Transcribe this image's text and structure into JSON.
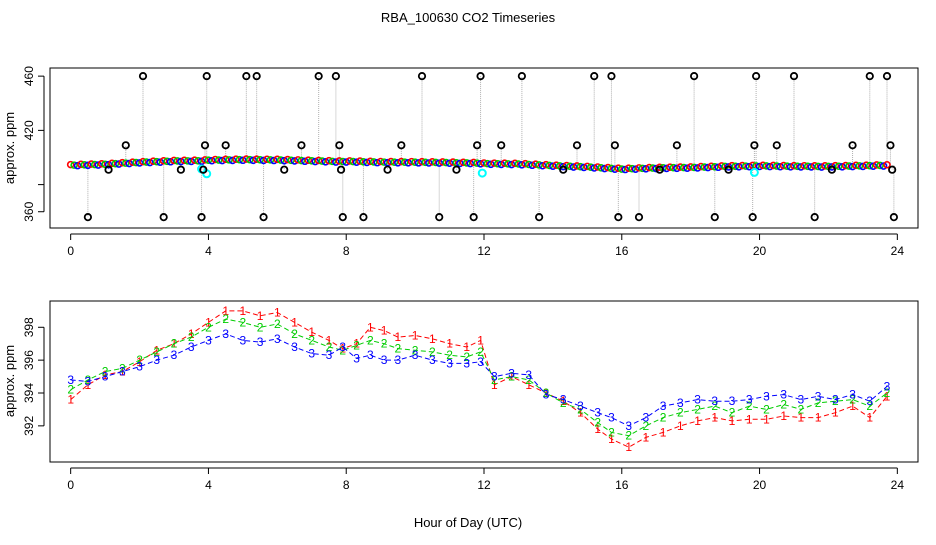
{
  "figure": {
    "title": "RBA_100630  CO2 Timeseries",
    "xlabel": "Hour of Day (UTC)"
  },
  "colors": {
    "series1": "#ff0000",
    "series2": "#00cd00",
    "series3": "#0000ff",
    "outlier": "#000000",
    "aux": "#00ffff",
    "line": "#b0b0b0"
  },
  "chart_data": [
    {
      "type": "scatter",
      "panel": "top",
      "ylabel": "approx. ppm",
      "xlim": [
        -0.6,
        24.6
      ],
      "ylim": [
        348,
        466
      ],
      "xticks": [
        0,
        4,
        8,
        12,
        16,
        20,
        24
      ],
      "yticks": [
        360,
        380,
        420,
        460
      ],
      "ytick_labels": [
        "360",
        "",
        "420",
        "460"
      ],
      "baseline": [
        [
          0,
          394.3
        ],
        [
          1,
          395
        ],
        [
          2,
          396.4
        ],
        [
          3,
          397.4
        ],
        [
          3.8,
          397.6
        ],
        [
          4,
          398
        ],
        [
          5,
          398.4
        ],
        [
          6,
          398.2
        ],
        [
          7.8,
          397
        ],
        [
          8,
          397.1
        ],
        [
          9,
          396.6
        ],
        [
          10,
          396.5
        ],
        [
          11,
          396.2
        ],
        [
          11.9,
          395.8
        ],
        [
          12,
          395.5
        ],
        [
          13,
          395.2
        ],
        [
          14,
          394
        ],
        [
          15,
          393
        ],
        [
          16,
          391.5
        ],
        [
          17,
          392.3
        ],
        [
          18,
          392.6
        ],
        [
          19,
          393.4
        ],
        [
          20,
          393.8
        ],
        [
          21,
          393.5
        ],
        [
          22,
          393.4
        ],
        [
          23.7,
          394.2
        ]
      ],
      "outliers": [
        [
          0.5,
          356
        ],
        [
          1.1,
          391
        ],
        [
          1.6,
          409
        ],
        [
          2.1,
          460
        ],
        [
          2.7,
          356
        ],
        [
          3.2,
          391
        ],
        [
          3.8,
          356
        ],
        [
          3.85,
          391
        ],
        [
          3.9,
          409
        ],
        [
          3.95,
          460
        ],
        [
          4.5,
          409
        ],
        [
          5.1,
          460
        ],
        [
          5.4,
          460
        ],
        [
          5.6,
          356
        ],
        [
          6.2,
          391
        ],
        [
          6.7,
          409
        ],
        [
          7.2,
          460
        ],
        [
          7.7,
          460
        ],
        [
          7.8,
          409
        ],
        [
          7.85,
          391
        ],
        [
          7.9,
          356
        ],
        [
          8.5,
          356
        ],
        [
          9.2,
          391
        ],
        [
          9.6,
          409
        ],
        [
          10.2,
          460
        ],
        [
          10.7,
          356
        ],
        [
          11.2,
          391
        ],
        [
          11.7,
          356
        ],
        [
          11.8,
          409
        ],
        [
          11.9,
          460
        ],
        [
          12.5,
          409
        ],
        [
          13.1,
          460
        ],
        [
          13.6,
          356
        ],
        [
          14.3,
          391
        ],
        [
          14.7,
          409
        ],
        [
          15.2,
          460
        ],
        [
          15.7,
          460
        ],
        [
          15.8,
          409
        ],
        [
          15.9,
          356
        ],
        [
          16.5,
          356
        ],
        [
          17.1,
          391
        ],
        [
          17.6,
          409
        ],
        [
          18.1,
          460
        ],
        [
          18.7,
          356
        ],
        [
          19.1,
          391
        ],
        [
          19.8,
          356
        ],
        [
          19.85,
          409
        ],
        [
          19.9,
          460
        ],
        [
          20.5,
          409
        ],
        [
          21.0,
          460
        ],
        [
          21.6,
          356
        ],
        [
          22.1,
          391
        ],
        [
          22.7,
          409
        ],
        [
          23.2,
          460
        ],
        [
          23.7,
          460
        ],
        [
          23.8,
          409
        ],
        [
          23.85,
          391
        ],
        [
          23.9,
          356
        ]
      ],
      "aux_points": [
        [
          3.8,
          391.5
        ],
        [
          3.95,
          388
        ],
        [
          11.95,
          388.5
        ],
        [
          19.85,
          389
        ]
      ]
    },
    {
      "type": "line",
      "panel": "bottom",
      "ylabel": "approx. ppm",
      "xlim": [
        -0.6,
        24.6
      ],
      "ylim": [
        389.8,
        399.6
      ],
      "xticks": [
        0,
        4,
        8,
        12,
        16,
        20,
        24
      ],
      "yticks": [
        392,
        394,
        396,
        398
      ],
      "series": [
        {
          "name": "1",
          "x": [
            0,
            0.5,
            1,
            1.5,
            2,
            2.5,
            3,
            3.5,
            4,
            4.5,
            5,
            5.5,
            6,
            6.5,
            7,
            7.5,
            7.9,
            8.3,
            8.7,
            9.1,
            9.5,
            10,
            10.5,
            11,
            11.5,
            11.9,
            12.3,
            12.8,
            13.3,
            13.8,
            14.3,
            14.8,
            15.3,
            15.7,
            16.2,
            16.7,
            17.2,
            17.7,
            18.2,
            18.7,
            19.2,
            19.7,
            20.2,
            20.7,
            21.2,
            21.7,
            22.2,
            22.7,
            23.2,
            23.7
          ],
          "values": [
            393.6,
            394.5,
            395.1,
            395.3,
            395.9,
            396.6,
            397.0,
            397.6,
            398.3,
            399.0,
            399.0,
            398.7,
            398.9,
            398.3,
            397.7,
            397.2,
            396.7,
            397.0,
            398.0,
            397.8,
            397.4,
            397.5,
            397.3,
            397.0,
            396.8,
            397.2,
            394.5,
            395.0,
            394.5,
            394.0,
            393.5,
            392.8,
            391.8,
            391.2,
            390.7,
            391.3,
            391.6,
            392.0,
            392.3,
            392.5,
            392.3,
            392.4,
            392.4,
            392.6,
            392.5,
            392.5,
            392.8,
            393.2,
            392.5,
            393.8
          ]
        },
        {
          "name": "2",
          "x": [
            0,
            0.5,
            1,
            1.5,
            2,
            2.5,
            3,
            3.5,
            4,
            4.5,
            5,
            5.5,
            6,
            6.5,
            7,
            7.5,
            7.9,
            8.3,
            8.7,
            9.1,
            9.5,
            10,
            10.5,
            11,
            11.5,
            11.9,
            12.3,
            12.8,
            13.3,
            13.8,
            14.3,
            14.8,
            15.3,
            15.7,
            16.2,
            16.7,
            17.2,
            17.7,
            18.2,
            18.7,
            19.2,
            19.7,
            20.2,
            20.7,
            21.2,
            21.7,
            22.2,
            22.7,
            23.2,
            23.7
          ],
          "values": [
            394.2,
            394.8,
            395.3,
            395.5,
            396.0,
            396.5,
            397.0,
            397.4,
            398.0,
            398.5,
            398.3,
            398.0,
            398.2,
            397.6,
            397.2,
            396.8,
            396.6,
            396.9,
            397.2,
            397.0,
            396.7,
            396.6,
            396.5,
            396.3,
            396.2,
            396.5,
            394.8,
            395.0,
            394.8,
            394.0,
            393.4,
            393.0,
            392.2,
            391.6,
            391.4,
            392.0,
            392.5,
            392.8,
            393.0,
            393.2,
            392.8,
            393.2,
            393.0,
            393.3,
            393.0,
            393.4,
            393.5,
            393.6,
            393.2,
            394.0
          ]
        },
        {
          "name": "3",
          "x": [
            0,
            0.5,
            1,
            1.5,
            2,
            2.5,
            3,
            3.5,
            4,
            4.5,
            5,
            5.5,
            6,
            6.5,
            7,
            7.5,
            7.9,
            8.3,
            8.7,
            9.1,
            9.5,
            10,
            10.5,
            11,
            11.5,
            11.9,
            12.3,
            12.8,
            13.3,
            13.8,
            14.3,
            14.8,
            15.3,
            15.7,
            16.2,
            16.7,
            17.2,
            17.7,
            18.2,
            18.7,
            19.2,
            19.7,
            20.2,
            20.7,
            21.2,
            21.7,
            22.2,
            22.7,
            23.2,
            23.7
          ],
          "values": [
            394.8,
            394.7,
            395.0,
            395.3,
            395.6,
            396.0,
            396.3,
            396.8,
            397.2,
            397.6,
            397.2,
            397.1,
            397.3,
            396.8,
            396.4,
            396.3,
            396.8,
            396.1,
            396.3,
            396.0,
            396.0,
            396.3,
            396.0,
            395.8,
            395.8,
            395.9,
            395.0,
            395.2,
            395.1,
            393.9,
            393.6,
            393.2,
            392.8,
            392.5,
            392.0,
            392.5,
            393.2,
            393.4,
            393.6,
            393.5,
            393.5,
            393.6,
            393.8,
            393.9,
            393.6,
            393.8,
            393.6,
            393.9,
            393.5,
            394.4
          ]
        }
      ]
    }
  ]
}
